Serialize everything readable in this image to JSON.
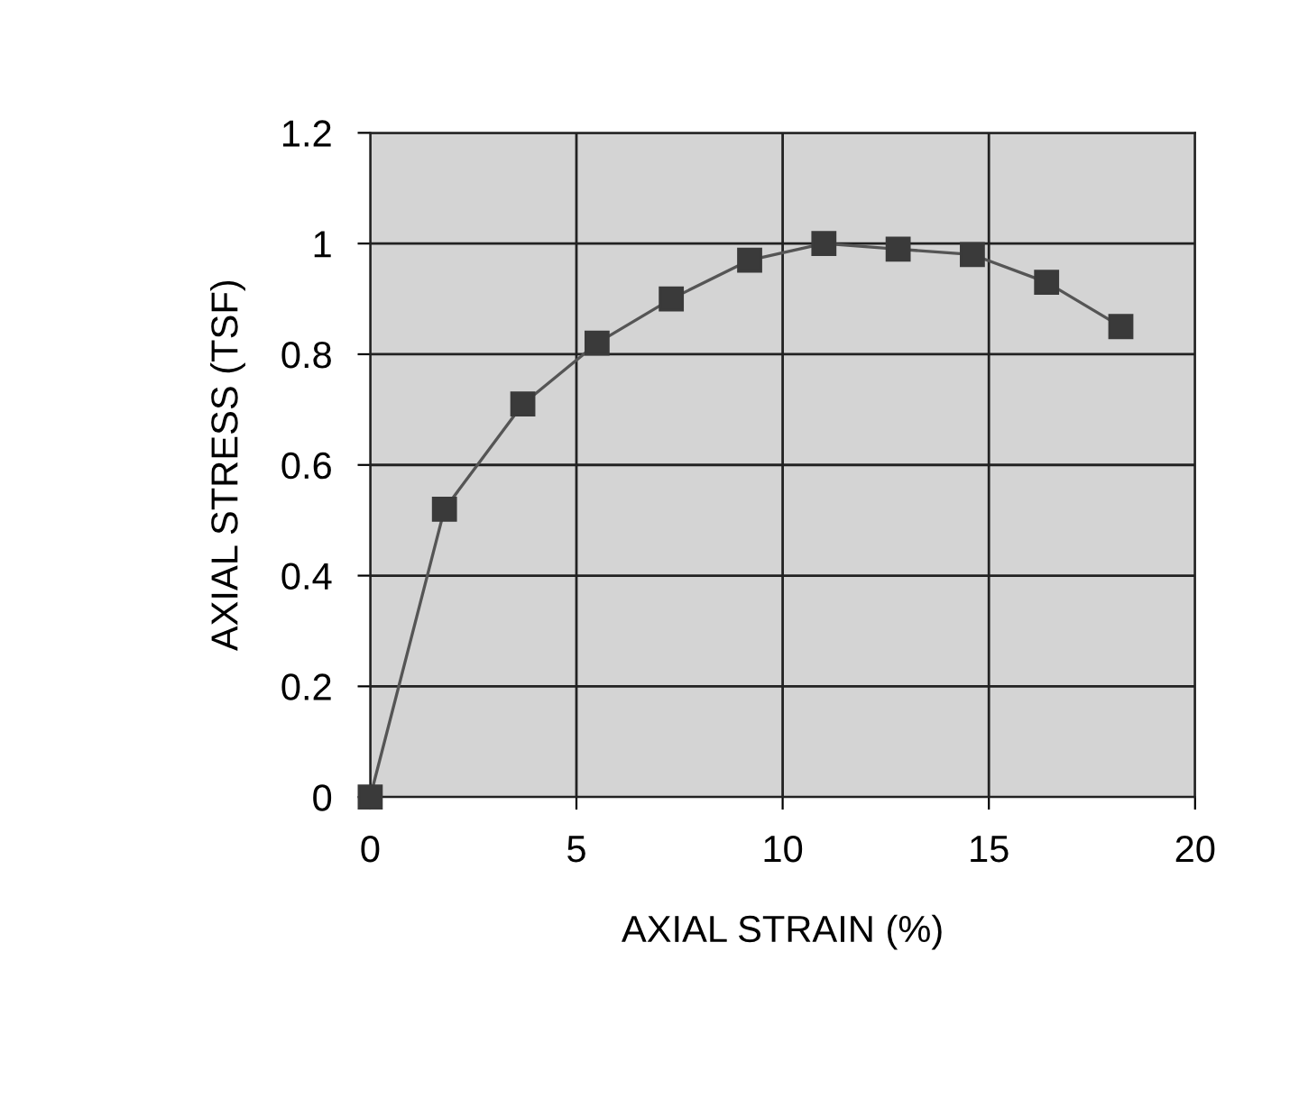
{
  "chart_data": {
    "type": "line",
    "xlabel": "AXIAL STRAIN (%)",
    "ylabel": "AXIAL STRESS (TSF)",
    "x": [
      0,
      1.8,
      3.7,
      5.5,
      7.3,
      9.2,
      11,
      12.8,
      14.6,
      16.4,
      18.2
    ],
    "series": [
      {
        "color": "#3a3a3a",
        "values": [
          0,
          0.52,
          0.71,
          0.82,
          0.9,
          0.97,
          1.0,
          0.99,
          0.98,
          0.93,
          0.85
        ]
      }
    ],
    "xlim": [
      0,
      20
    ],
    "xticks": [
      0,
      5,
      10,
      15,
      20
    ],
    "ylim": [
      0,
      1.2
    ],
    "yticks": [
      0,
      0.2,
      0.4,
      0.6,
      0.8,
      1,
      1.2
    ],
    "grid": true,
    "marker": "square",
    "line_style": "solid"
  }
}
